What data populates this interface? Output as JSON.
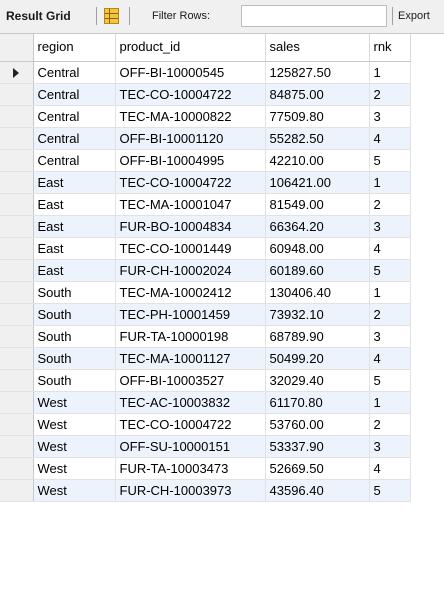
{
  "toolbar": {
    "result_grid_label": "Result Grid",
    "filter_rows_label": "Filter Rows:",
    "filter_value": "",
    "export_label": "Export"
  },
  "columns": [
    "region",
    "product_id",
    "sales",
    "rnk"
  ],
  "current_row_index": 0,
  "rows": [
    [
      "Central",
      "OFF-BI-10000545",
      "125827.50",
      "1"
    ],
    [
      "Central",
      "TEC-CO-10004722",
      "84875.00",
      "2"
    ],
    [
      "Central",
      "TEC-MA-10000822",
      "77509.80",
      "3"
    ],
    [
      "Central",
      "OFF-BI-10001120",
      "55282.50",
      "4"
    ],
    [
      "Central",
      "OFF-BI-10004995",
      "42210.00",
      "5"
    ],
    [
      "East",
      "TEC-CO-10004722",
      "106421.00",
      "1"
    ],
    [
      "East",
      "TEC-MA-10001047",
      "81549.00",
      "2"
    ],
    [
      "East",
      "FUR-BO-10004834",
      "66364.20",
      "3"
    ],
    [
      "East",
      "TEC-CO-10001449",
      "60948.00",
      "4"
    ],
    [
      "East",
      "FUR-CH-10002024",
      "60189.60",
      "5"
    ],
    [
      "South",
      "TEC-MA-10002412",
      "130406.40",
      "1"
    ],
    [
      "South",
      "TEC-PH-10001459",
      "73932.10",
      "2"
    ],
    [
      "South",
      "FUR-TA-10000198",
      "68789.90",
      "3"
    ],
    [
      "South",
      "TEC-MA-10001127",
      "50499.20",
      "4"
    ],
    [
      "South",
      "OFF-BI-10003527",
      "32029.40",
      "5"
    ],
    [
      "West",
      "TEC-AC-10003832",
      "61170.80",
      "1"
    ],
    [
      "West",
      "TEC-CO-10004722",
      "53760.00",
      "2"
    ],
    [
      "West",
      "OFF-SU-10000151",
      "53337.90",
      "3"
    ],
    [
      "West",
      "FUR-TA-10003473",
      "52669.50",
      "4"
    ],
    [
      "West",
      "FUR-CH-10003973",
      "43596.40",
      "5"
    ]
  ],
  "colors": {
    "toolbar_bg": "#f0f0f0",
    "alt_row_bg": "#edf3fc",
    "row_header_bg": "#f0f0f0"
  },
  "icons": {
    "grid_toggle": "form-grid-icon",
    "current_row": "current-row-arrow-icon"
  }
}
